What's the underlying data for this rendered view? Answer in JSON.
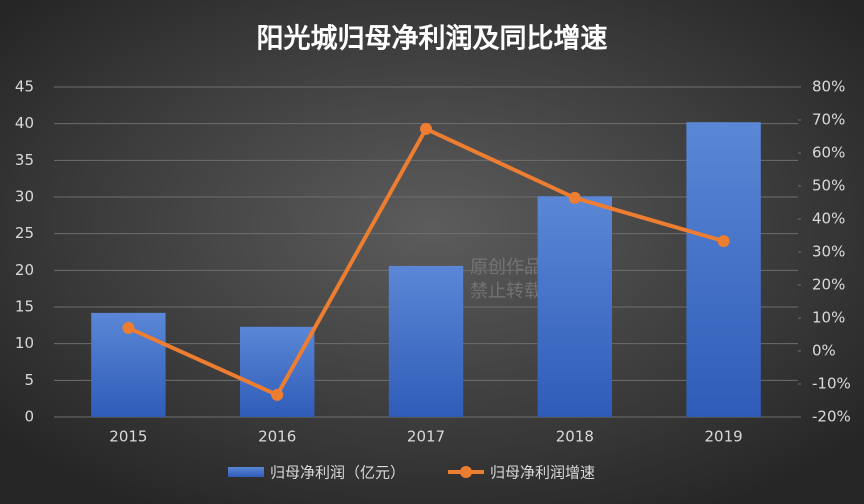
{
  "chart_data": {
    "type": "bar-line",
    "title": "阳光城归母净利润及同比增速",
    "categories": [
      "2015",
      "2016",
      "2017",
      "2018",
      "2019"
    ],
    "series": [
      {
        "name": "归母净利润（亿元）",
        "type": "bar",
        "color": "#4472c4",
        "values": [
          14.2,
          12.3,
          20.6,
          30.1,
          40.2
        ]
      },
      {
        "name": "归母净利润增速",
        "type": "line",
        "axis": "y2",
        "color": "#ed7d31",
        "values": [
          7.0,
          -13.3,
          67.3,
          46.4,
          33.3
        ]
      }
    ],
    "ylim": [
      0,
      45
    ],
    "yticks": [
      0,
      5,
      10,
      15,
      20,
      25,
      30,
      35,
      40,
      45
    ],
    "y2lim": [
      -20,
      80
    ],
    "y2ticks": [
      {
        "value": -20,
        "label": "-20%"
      },
      {
        "value": -10,
        "label": "-10%"
      },
      {
        "value": 0,
        "label": "0%"
      },
      {
        "value": 10,
        "label": "10%"
      },
      {
        "value": 20,
        "label": "20%"
      },
      {
        "value": 30,
        "label": "30%"
      },
      {
        "value": 40,
        "label": "40%"
      },
      {
        "value": 50,
        "label": "50%"
      },
      {
        "value": 60,
        "label": "60%"
      },
      {
        "value": 70,
        "label": "70%"
      },
      {
        "value": 80,
        "label": "80%"
      }
    ],
    "grid": true,
    "legend": "bottom",
    "watermark": [
      "原创作品",
      "禁止转载"
    ]
  }
}
